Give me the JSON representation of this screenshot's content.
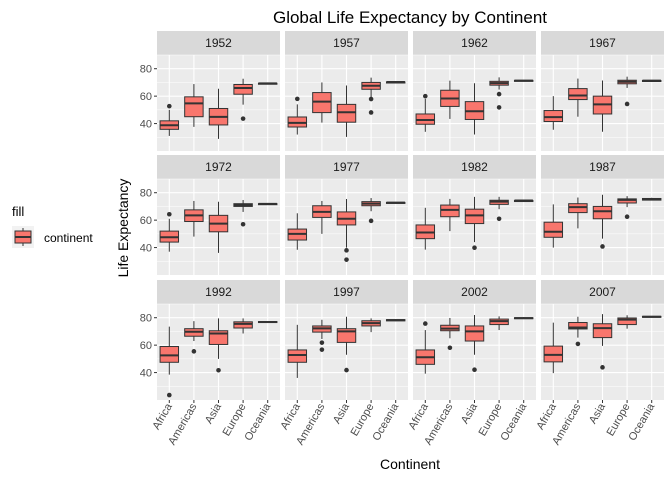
{
  "chart_data": {
    "type": "boxplot",
    "title": "Global Life Expectancy by Continent",
    "xlabel": "Continent",
    "ylabel": "Life Expectancy",
    "categories": [
      "Africa",
      "Americas",
      "Asia",
      "Europe",
      "Oceania"
    ],
    "ylim": [
      20,
      90
    ],
    "yticks": [
      40,
      60,
      80
    ],
    "grid": true,
    "fill_color": "#f8766d",
    "legend": {
      "title": "fill",
      "label": "continent",
      "position": "left"
    },
    "facets": [
      {
        "label": "1952",
        "boxes": [
          {
            "low": 31,
            "q1": 35.8,
            "median": 38.8,
            "q3": 42,
            "high": 50,
            "outliers": [
              52.7
            ]
          },
          {
            "low": 37.6,
            "q1": 45,
            "median": 54.7,
            "q3": 59.5,
            "high": 68.8,
            "outliers": []
          },
          {
            "low": 28.8,
            "q1": 39,
            "median": 44.9,
            "q3": 51,
            "high": 65.4,
            "outliers": []
          },
          {
            "low": 53.8,
            "q1": 61.4,
            "median": 65.9,
            "q3": 68.5,
            "high": 72.7,
            "outliers": [
              43.6
            ]
          },
          {
            "low": 69.1,
            "q1": 69.2,
            "median": 69.3,
            "q3": 69.4,
            "high": 69.4,
            "outliers": []
          }
        ]
      },
      {
        "label": "1957",
        "boxes": [
          {
            "low": 32,
            "q1": 37.5,
            "median": 40.5,
            "q3": 44.8,
            "high": 54,
            "outliers": [
              58
            ]
          },
          {
            "low": 40.7,
            "q1": 48,
            "median": 56,
            "q3": 62.6,
            "high": 70,
            "outliers": []
          },
          {
            "low": 30.3,
            "q1": 41,
            "median": 48.3,
            "q3": 54,
            "high": 67.8,
            "outliers": []
          },
          {
            "low": 59,
            "q1": 65,
            "median": 67.6,
            "q3": 70,
            "high": 73.5,
            "outliers": [
              48.1,
              57.9
            ]
          },
          {
            "low": 70.3,
            "q1": 70.3,
            "median": 70.3,
            "q3": 70.3,
            "high": 70.3,
            "outliers": []
          }
        ]
      },
      {
        "label": "1962",
        "boxes": [
          {
            "low": 34,
            "q1": 39.5,
            "median": 42.6,
            "q3": 47,
            "high": 58,
            "outliers": [
              60
            ]
          },
          {
            "low": 43.4,
            "q1": 52.5,
            "median": 58.3,
            "q3": 64.3,
            "high": 71.3,
            "outliers": []
          },
          {
            "low": 32,
            "q1": 43,
            "median": 49,
            "q3": 56,
            "high": 69.4,
            "outliers": []
          },
          {
            "low": 64.8,
            "q1": 68,
            "median": 69.5,
            "q3": 70.8,
            "high": 73.7,
            "outliers": [
              51.8,
              61.5
            ]
          },
          {
            "low": 70.9,
            "q1": 71,
            "median": 71.3,
            "q3": 71.5,
            "high": 71.6,
            "outliers": []
          }
        ]
      },
      {
        "label": "1967",
        "boxes": [
          {
            "low": 35.5,
            "q1": 41.5,
            "median": 44.7,
            "q3": 49.5,
            "high": 60,
            "outliers": []
          },
          {
            "low": 45,
            "q1": 57.5,
            "median": 60.5,
            "q3": 65.5,
            "high": 72.8,
            "outliers": []
          },
          {
            "low": 34,
            "q1": 47,
            "median": 54,
            "q3": 60,
            "high": 71.4,
            "outliers": []
          },
          {
            "low": 66,
            "q1": 69,
            "median": 70.5,
            "q3": 71.6,
            "high": 74.2,
            "outliers": [
              54.3
            ]
          },
          {
            "low": 71.1,
            "q1": 71.2,
            "median": 71.3,
            "q3": 71.4,
            "high": 71.5,
            "outliers": []
          }
        ]
      },
      {
        "label": "1972",
        "boxes": [
          {
            "low": 37,
            "q1": 44,
            "median": 47.5,
            "q3": 52,
            "high": 61,
            "outliers": [
              64.3
            ]
          },
          {
            "low": 48,
            "q1": 59,
            "median": 63.5,
            "q3": 67.5,
            "high": 74,
            "outliers": []
          },
          {
            "low": 36.1,
            "q1": 51.5,
            "median": 57.5,
            "q3": 63.5,
            "high": 73.4,
            "outliers": []
          },
          {
            "low": 66,
            "q1": 70,
            "median": 71,
            "q3": 72,
            "high": 74.7,
            "outliers": [
              57
            ]
          },
          {
            "low": 71.8,
            "q1": 71.8,
            "median": 71.9,
            "q3": 72,
            "high": 72,
            "outliers": []
          }
        ]
      },
      {
        "label": "1977",
        "boxes": [
          {
            "low": 38.4,
            "q1": 45.5,
            "median": 50,
            "q3": 53.5,
            "high": 65,
            "outliers": []
          },
          {
            "low": 50,
            "q1": 62,
            "median": 66,
            "q3": 70.5,
            "high": 74,
            "outliers": []
          },
          {
            "low": 40,
            "q1": 56.5,
            "median": 61,
            "q3": 66,
            "high": 75.4,
            "outliers": [
              38,
              31.2
            ]
          },
          {
            "low": 66.5,
            "q1": 70.5,
            "median": 72,
            "q3": 73.5,
            "high": 76.1,
            "outliers": [
              59.5
            ]
          },
          {
            "low": 72.7,
            "q1": 72.7,
            "median": 72.8,
            "q3": 72.9,
            "high": 73,
            "outliers": []
          }
        ]
      },
      {
        "label": "1982",
        "boxes": [
          {
            "low": 38.5,
            "q1": 46.5,
            "median": 51,
            "q3": 56.5,
            "high": 69,
            "outliers": []
          },
          {
            "low": 52,
            "q1": 62.5,
            "median": 67.5,
            "q3": 71,
            "high": 75.5,
            "outliers": []
          },
          {
            "low": 44,
            "q1": 57.5,
            "median": 63.5,
            "q3": 68,
            "high": 77,
            "outliers": [
              39.9
            ]
          },
          {
            "low": 68,
            "q1": 71.5,
            "median": 73.5,
            "q3": 74.5,
            "high": 77,
            "outliers": [
              61
            ]
          },
          {
            "low": 74.3,
            "q1": 74.3,
            "median": 74.3,
            "q3": 74.3,
            "high": 74.3,
            "outliers": []
          }
        ]
      },
      {
        "label": "1987",
        "boxes": [
          {
            "low": 40,
            "q1": 47.5,
            "median": 51.5,
            "q3": 58.5,
            "high": 71.5,
            "outliers": []
          },
          {
            "low": 54,
            "q1": 65.5,
            "median": 69.5,
            "q3": 72,
            "high": 76.5,
            "outliers": []
          },
          {
            "low": 46.5,
            "q1": 61,
            "median": 66.5,
            "q3": 70,
            "high": 78.5,
            "outliers": [
              40.8
            ]
          },
          {
            "low": 69.5,
            "q1": 72.5,
            "median": 74.8,
            "q3": 75.5,
            "high": 77.5,
            "outliers": [
              62.5
            ]
          },
          {
            "low": 74.5,
            "q1": 74.6,
            "median": 75.2,
            "q3": 75.8,
            "high": 76.3,
            "outliers": []
          }
        ]
      },
      {
        "label": "1992",
        "boxes": [
          {
            "low": 38.5,
            "q1": 47.5,
            "median": 52.5,
            "q3": 59,
            "high": 73.5,
            "outliers": [
              23.6
            ]
          },
          {
            "low": 63,
            "q1": 66.5,
            "median": 69.8,
            "q3": 72,
            "high": 77.5,
            "outliers": [
              55.5
            ]
          },
          {
            "low": 50,
            "q1": 60.5,
            "median": 68.5,
            "q3": 70.5,
            "high": 79.5,
            "outliers": [
              41.7
            ]
          },
          {
            "low": 68.5,
            "q1": 72.5,
            "median": 75.5,
            "q3": 77,
            "high": 79.5,
            "outliers": []
          },
          {
            "low": 76.3,
            "q1": 76.5,
            "median": 76.9,
            "q3": 77.2,
            "high": 77.5,
            "outliers": []
          }
        ]
      },
      {
        "label": "1997",
        "boxes": [
          {
            "low": 36.1,
            "q1": 47.5,
            "median": 52.8,
            "q3": 56.5,
            "high": 74.8,
            "outliers": []
          },
          {
            "low": 64.5,
            "q1": 69.5,
            "median": 72.2,
            "q3": 74,
            "high": 78.5,
            "outliers": [
              61.8,
              56.7
            ]
          },
          {
            "low": 53,
            "q1": 62,
            "median": 70,
            "q3": 72,
            "high": 80.7,
            "outliers": [
              41.8
            ]
          },
          {
            "low": 69.5,
            "q1": 74,
            "median": 76.1,
            "q3": 77.8,
            "high": 79.5,
            "outliers": []
          },
          {
            "low": 77.5,
            "q1": 77.7,
            "median": 78.2,
            "q3": 78.6,
            "high": 78.8,
            "outliers": []
          }
        ]
      },
      {
        "label": "2002",
        "boxes": [
          {
            "low": 39.2,
            "q1": 46,
            "median": 51.2,
            "q3": 56.5,
            "high": 71,
            "outliers": [
              75.7
            ]
          },
          {
            "low": 65,
            "q1": 70.5,
            "median": 72,
            "q3": 74.5,
            "high": 79.8,
            "outliers": [
              58.1
            ]
          },
          {
            "low": 53,
            "q1": 63,
            "median": 70,
            "q3": 74,
            "high": 82,
            "outliers": [
              42.1
            ]
          },
          {
            "low": 71,
            "q1": 75,
            "median": 77.5,
            "q3": 79,
            "high": 81,
            "outliers": []
          },
          {
            "low": 79.1,
            "q1": 79.3,
            "median": 79.7,
            "q3": 80,
            "high": 80.4,
            "outliers": []
          }
        ]
      },
      {
        "label": "2007",
        "boxes": [
          {
            "low": 39.6,
            "q1": 47.8,
            "median": 52.9,
            "q3": 59.3,
            "high": 76.4,
            "outliers": []
          },
          {
            "low": 65.5,
            "q1": 71.8,
            "median": 72.9,
            "q3": 76.5,
            "high": 80.7,
            "outliers": [
              60.9
            ]
          },
          {
            "low": 59.5,
            "q1": 65.5,
            "median": 72.4,
            "q3": 75.6,
            "high": 82.6,
            "outliers": [
              43.8
            ]
          },
          {
            "low": 72,
            "q1": 75,
            "median": 78.6,
            "q3": 79.8,
            "high": 81.8,
            "outliers": []
          },
          {
            "low": 80.2,
            "q1": 80.4,
            "median": 80.7,
            "q3": 81,
            "high": 81.2,
            "outliers": []
          }
        ]
      }
    ]
  }
}
